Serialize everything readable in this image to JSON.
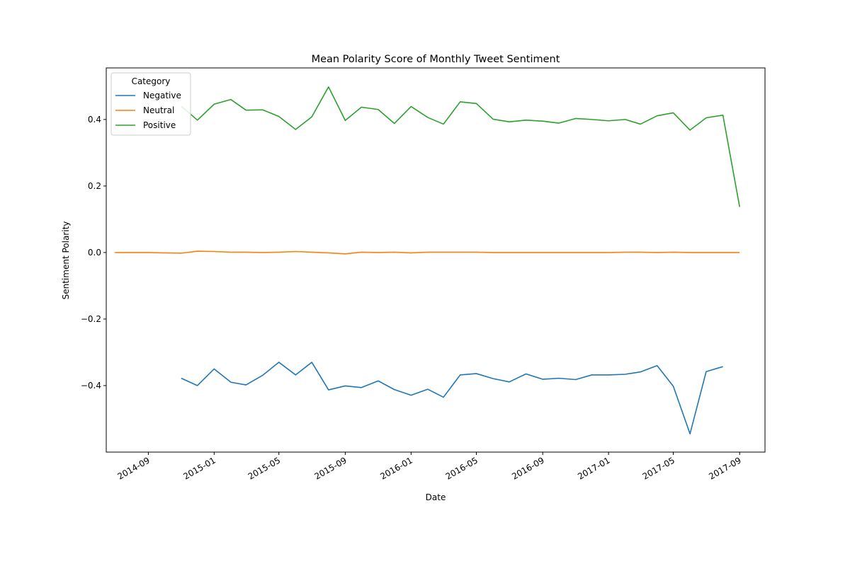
{
  "chart_data": {
    "type": "line",
    "title": "Mean Polarity Score of Monthly Tweet Sentiment",
    "xlabel": "Date",
    "ylabel": "Sentiment Polarity",
    "x_axis_type": "date",
    "xlim": [
      "2014-06-15",
      "2017-10-18"
    ],
    "ylim": [
      -0.6,
      0.555
    ],
    "x_ticks": [
      "2014-09",
      "2015-01",
      "2015-05",
      "2015-09",
      "2016-01",
      "2016-05",
      "2016-09",
      "2017-01",
      "2017-05",
      "2017-09"
    ],
    "y_ticks": [
      "−0.4",
      "−0.2",
      "0.0",
      "0.2",
      "0.4"
    ],
    "y_tick_values": [
      -0.4,
      -0.2,
      0.0,
      0.2,
      0.4
    ],
    "grid": false,
    "legend": {
      "title": "Category",
      "position": "top-left"
    },
    "series": [
      {
        "name": "Negative",
        "color": "#1f77b4",
        "x": [
          "2014-11",
          "2014-12",
          "2015-01",
          "2015-02",
          "2015-03",
          "2015-04",
          "2015-05",
          "2015-06",
          "2015-07",
          "2015-08",
          "2015-09",
          "2015-10",
          "2015-11",
          "2015-12",
          "2016-01",
          "2016-02",
          "2016-03",
          "2016-04",
          "2016-05",
          "2016-06",
          "2016-07",
          "2016-08",
          "2016-09",
          "2016-10",
          "2016-11",
          "2016-12",
          "2017-01",
          "2017-02",
          "2017-03",
          "2017-04",
          "2017-05",
          "2017-06",
          "2017-07",
          "2017-08"
        ],
        "values": [
          -0.378,
          -0.4,
          -0.35,
          -0.39,
          -0.398,
          -0.369,
          -0.33,
          -0.368,
          -0.33,
          -0.413,
          -0.401,
          -0.406,
          -0.386,
          -0.412,
          -0.429,
          -0.411,
          -0.435,
          -0.368,
          -0.364,
          -0.379,
          -0.389,
          -0.365,
          -0.381,
          -0.378,
          -0.382,
          -0.368,
          -0.368,
          -0.366,
          -0.359,
          -0.34,
          -0.402,
          -0.545,
          -0.358,
          -0.343
        ]
      },
      {
        "name": "Neutral",
        "color": "#ff7f0e",
        "x": [
          "2014-07",
          "2014-08",
          "2014-09",
          "2014-10",
          "2014-11",
          "2014-12",
          "2015-01",
          "2015-02",
          "2015-03",
          "2015-04",
          "2015-05",
          "2015-06",
          "2015-07",
          "2015-08",
          "2015-09",
          "2015-10",
          "2015-11",
          "2015-12",
          "2016-01",
          "2016-02",
          "2016-03",
          "2016-04",
          "2016-05",
          "2016-06",
          "2016-07",
          "2016-08",
          "2016-09",
          "2016-10",
          "2016-11",
          "2016-12",
          "2017-01",
          "2017-02",
          "2017-03",
          "2017-04",
          "2017-05",
          "2017-06",
          "2017-07",
          "2017-08",
          "2017-09"
        ],
        "values": [
          0.0,
          0.0,
          0.0,
          -0.001,
          -0.002,
          0.004,
          0.003,
          0.001,
          0.001,
          0.0,
          0.001,
          0.003,
          0.001,
          -0.001,
          -0.004,
          0.001,
          0.0,
          0.001,
          -0.001,
          0.001,
          0.001,
          0.001,
          0.001,
          0.0,
          0.0,
          0.0,
          0.0,
          0.0,
          0.0,
          0.0,
          0.0,
          0.001,
          0.001,
          0.0,
          0.001,
          0.0,
          0.0,
          0.0,
          0.0
        ]
      },
      {
        "name": "Positive",
        "color": "#2ca02c",
        "x": [
          "2014-11",
          "2014-12",
          "2015-01",
          "2015-02",
          "2015-03",
          "2015-04",
          "2015-05",
          "2015-06",
          "2015-07",
          "2015-08",
          "2015-09",
          "2015-10",
          "2015-11",
          "2015-12",
          "2016-01",
          "2016-02",
          "2016-03",
          "2016-04",
          "2016-05",
          "2016-06",
          "2016-07",
          "2016-08",
          "2016-09",
          "2016-10",
          "2016-11",
          "2016-12",
          "2017-01",
          "2017-02",
          "2017-03",
          "2017-04",
          "2017-05",
          "2017-06",
          "2017-07",
          "2017-08",
          "2017-09"
        ],
        "values": [
          0.44,
          0.398,
          0.446,
          0.46,
          0.428,
          0.429,
          0.409,
          0.37,
          0.408,
          0.498,
          0.397,
          0.437,
          0.43,
          0.388,
          0.439,
          0.406,
          0.386,
          0.453,
          0.448,
          0.401,
          0.393,
          0.398,
          0.395,
          0.389,
          0.403,
          0.4,
          0.396,
          0.4,
          0.386,
          0.411,
          0.42,
          0.368,
          0.405,
          0.413,
          0.137
        ]
      }
    ]
  }
}
